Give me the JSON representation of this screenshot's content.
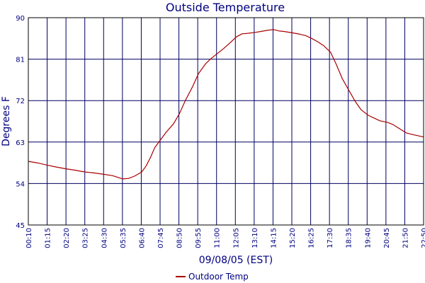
{
  "chart_data": {
    "type": "line",
    "title": "Outside Temperature",
    "xlabel": "09/08/05 (EST)",
    "ylabel": "Degrees F",
    "ylim": [
      45,
      90
    ],
    "yticks": [
      45,
      54,
      63,
      72,
      81,
      90
    ],
    "x_tick_labels": [
      "00:10",
      "01:15",
      "02:20",
      "03:25",
      "04:30",
      "05:35",
      "06:40",
      "07:45",
      "08:50",
      "09:55",
      "11:00",
      "12:05",
      "13:10",
      "14:15",
      "15:20",
      "16:25",
      "17:30",
      "18:35",
      "19:40",
      "20:45",
      "21:50",
      "22:50"
    ],
    "grid": true,
    "legend_position": "bottom-center",
    "colors": {
      "series": "#aa0000",
      "grid": "#000060",
      "text": "#000080"
    },
    "series": [
      {
        "name": "Outdoor Temp",
        "x": [
          "00:10",
          "00:40",
          "01:15",
          "01:45",
          "02:20",
          "02:50",
          "03:25",
          "03:55",
          "04:30",
          "05:00",
          "05:20",
          "05:35",
          "05:55",
          "06:15",
          "06:40",
          "06:55",
          "07:10",
          "07:25",
          "07:45",
          "08:05",
          "08:30",
          "08:50",
          "09:10",
          "09:35",
          "09:55",
          "10:20",
          "10:40",
          "11:00",
          "11:20",
          "11:45",
          "12:05",
          "12:25",
          "12:45",
          "13:10",
          "13:30",
          "13:55",
          "14:15",
          "14:35",
          "14:50",
          "15:20",
          "15:45",
          "16:05",
          "16:25",
          "16:45",
          "17:05",
          "17:30",
          "17:50",
          "18:10",
          "18:35",
          "18:55",
          "19:15",
          "19:40",
          "20:00",
          "20:20",
          "20:45",
          "21:05",
          "21:30",
          "21:50",
          "22:15",
          "22:50"
        ],
        "values": [
          58.8,
          58.5,
          58.0,
          57.6,
          57.2,
          56.9,
          56.5,
          56.3,
          56.0,
          55.7,
          55.3,
          55.0,
          55.1,
          55.6,
          56.5,
          57.8,
          59.6,
          61.8,
          63.5,
          65.2,
          67.0,
          69.2,
          72.0,
          75.0,
          77.8,
          80.0,
          81.2,
          82.2,
          83.2,
          84.6,
          85.8,
          86.5,
          86.6,
          86.8,
          87.0,
          87.3,
          87.4,
          87.1,
          87.0,
          86.7,
          86.4,
          86.1,
          85.5,
          84.8,
          84.0,
          82.5,
          79.8,
          76.8,
          74.0,
          71.8,
          70.0,
          68.8,
          68.2,
          67.6,
          67.3,
          66.8,
          65.8,
          65.0,
          64.6,
          64.1
        ]
      }
    ]
  }
}
